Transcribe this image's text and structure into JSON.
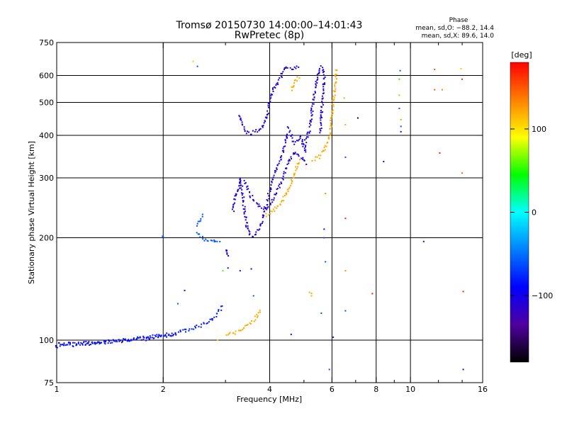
{
  "chart_data": {
    "type": "scatter",
    "title": "Tromsø 20150730 14:00:00–14:01:43",
    "subtitle": "RwPretec (8p)",
    "xlabel": "Frequency [MHz]",
    "ylabel": "Stationary phase Virtual Height [km]",
    "x_scale": "log",
    "y_scale": "log",
    "xlim": [
      1,
      16
    ],
    "ylim": [
      75,
      750
    ],
    "x_ticks": [
      1,
      2,
      4,
      6,
      8,
      10,
      16
    ],
    "x_tick_labels": [
      "1",
      "2",
      "4",
      "6",
      "8",
      "10",
      "16"
    ],
    "x_grid": [
      2,
      4,
      6,
      8,
      10
    ],
    "x_minor_ticks": [
      3,
      5,
      7,
      9,
      12,
      14
    ],
    "y_ticks": [
      75,
      100,
      200,
      300,
      400,
      500,
      600,
      750
    ],
    "y_tick_labels": [
      "75",
      "100",
      "200",
      "300",
      "400",
      "500",
      "600",
      "750"
    ],
    "y_grid": [
      100,
      200,
      300,
      400,
      500,
      600
    ],
    "grid": true,
    "stats": {
      "heading": "Phase",
      "line_o": "mean, sd,O: −88.2, 14.4",
      "line_x": "mean, sd,X:  89.6, 14.0"
    },
    "colorbar": {
      "label": "[deg]",
      "range": [
        -180,
        180
      ],
      "ticks": [
        100,
        0,
        -100
      ],
      "tick_labels": [
        "100",
        "0",
        "−100"
      ],
      "colors": [
        "#ff0000",
        "#ff8000",
        "#ffff00",
        "#00ff00",
        "#00ffff",
        "#0080ff",
        "#0000ff",
        "#5000a0",
        "#000000"
      ]
    },
    "traces": [
      {
        "phase": -105,
        "segments": [
          [
            [
              1.0,
              97
            ],
            [
              1.2,
              98
            ],
            [
              1.4,
              99
            ],
            [
              1.6,
              100
            ],
            [
              1.8,
              101
            ],
            [
              2.0,
              103
            ],
            [
              2.2,
              104
            ]
          ]
        ]
      },
      {
        "phase": -80,
        "segments": [
          [
            [
              1.0,
              96
            ],
            [
              1.3,
              98
            ],
            [
              1.7,
              101
            ],
            [
              2.1,
              104
            ],
            [
              2.4,
              108
            ],
            [
              2.7,
              113
            ],
            [
              2.85,
              120
            ],
            [
              2.95,
              127
            ]
          ]
        ]
      },
      {
        "phase": -60,
        "segments": [
          [
            [
              2.5,
              207
            ],
            [
              2.6,
              199
            ],
            [
              2.72,
              195
            ],
            [
              2.82,
              194
            ],
            [
              2.9,
              196
            ]
          ],
          [
            [
              2.48,
              218
            ],
            [
              2.55,
              228
            ],
            [
              2.6,
              234
            ]
          ],
          [
            [
              2.0,
              200
            ],
            [
              1.97,
              203
            ]
          ]
        ]
      },
      {
        "phase": -108,
        "segments": [
          [
            [
              3.0,
              185
            ],
            [
              3.05,
              178
            ],
            [
              3.1,
              175
            ]
          ],
          [
            [
              3.15,
              240
            ],
            [
              3.2,
              260
            ],
            [
              3.27,
              280
            ],
            [
              3.3,
              300
            ],
            [
              3.35,
              270
            ],
            [
              3.4,
              240
            ],
            [
              3.45,
              215
            ],
            [
              3.5,
              205
            ],
            [
              3.6,
              203
            ],
            [
              3.7,
              210
            ],
            [
              3.8,
              225
            ],
            [
              3.9,
              245
            ],
            [
              4.0,
              275
            ],
            [
              4.1,
              300
            ],
            [
              4.2,
              320
            ],
            [
              4.3,
              340
            ],
            [
              4.4,
              370
            ],
            [
              4.5,
              410
            ]
          ],
          [
            [
              3.4,
              292
            ],
            [
              3.5,
              270
            ],
            [
              3.7,
              250
            ],
            [
              3.9,
              242
            ],
            [
              4.1,
              260
            ],
            [
              4.3,
              290
            ],
            [
              4.5,
              330
            ],
            [
              4.7,
              355
            ],
            [
              4.9,
              345
            ],
            [
              5.1,
              330
            ]
          ],
          [
            [
              3.3,
              460
            ],
            [
              3.4,
              410
            ],
            [
              3.5,
              405
            ],
            [
              3.7,
              412
            ],
            [
              3.85,
              430
            ],
            [
              3.95,
              460
            ],
            [
              4.0,
              510
            ],
            [
              4.1,
              545
            ],
            [
              4.25,
              580
            ],
            [
              4.45,
              635
            ],
            [
              4.65,
              630
            ],
            [
              4.85,
              645
            ]
          ],
          [
            [
              4.5,
              420
            ],
            [
              4.7,
              380
            ],
            [
              4.9,
              400
            ],
            [
              5.0,
              370
            ],
            [
              5.1,
              355
            ]
          ],
          [
            [
              5.0,
              370
            ],
            [
              5.2,
              420
            ],
            [
              5.3,
              500
            ],
            [
              5.4,
              560
            ],
            [
              5.5,
              620
            ],
            [
              5.6,
              640
            ],
            [
              5.7,
              600
            ],
            [
              5.65,
              520
            ],
            [
              5.6,
              450
            ],
            [
              5.55,
              400
            ]
          ]
        ]
      },
      {
        "phase": 120,
        "segments": [
          [
            [
              3.0,
              104
            ],
            [
              3.2,
              105
            ],
            [
              3.4,
              109
            ],
            [
              3.55,
              113
            ],
            [
              3.7,
              118
            ],
            [
              3.8,
              123
            ]
          ],
          [
            [
              3.9,
              232
            ],
            [
              4.1,
              240
            ],
            [
              4.3,
              252
            ],
            [
              4.5,
              275
            ],
            [
              4.7,
              305
            ],
            [
              4.85,
              340
            ]
          ],
          [
            [
              5.3,
              340
            ],
            [
              5.5,
              345
            ],
            [
              5.7,
              360
            ],
            [
              5.9,
              400
            ],
            [
              6.0,
              460
            ],
            [
              6.1,
              540
            ],
            [
              6.2,
              630
            ]
          ],
          [
            [
              4.6,
              545
            ],
            [
              4.7,
              570
            ],
            [
              4.85,
              600
            ]
          ],
          [
            [
              5.2,
              138
            ],
            [
              5.3,
              134
            ]
          ]
        ]
      }
    ],
    "points": [
      {
        "x": 2.43,
        "y": 660,
        "phase": 110
      },
      {
        "x": 2.5,
        "y": 638,
        "phase": -60
      },
      {
        "x": 2.3,
        "y": 140,
        "phase": -110
      },
      {
        "x": 2.2,
        "y": 128,
        "phase": -60
      },
      {
        "x": 2.85,
        "y": 100,
        "phase": 110
      },
      {
        "x": 2.95,
        "y": 160,
        "phase": 60
      },
      {
        "x": 3.05,
        "y": 163,
        "phase": -110
      },
      {
        "x": 3.3,
        "y": 160,
        "phase": -110
      },
      {
        "x": 3.55,
        "y": 162,
        "phase": -110
      },
      {
        "x": 3.6,
        "y": 135,
        "phase": -60
      },
      {
        "x": 4.6,
        "y": 104,
        "phase": -110
      },
      {
        "x": 5.7,
        "y": 212,
        "phase": -110
      },
      {
        "x": 5.7,
        "y": 200,
        "phase": -60
      },
      {
        "x": 5.75,
        "y": 170,
        "phase": -60
      },
      {
        "x": 5.9,
        "y": 82,
        "phase": -60
      },
      {
        "x": 6.05,
        "y": 102,
        "phase": -110
      },
      {
        "x": 5.75,
        "y": 270,
        "phase": 130
      },
      {
        "x": 5.6,
        "y": 120,
        "phase": -60
      },
      {
        "x": 6.5,
        "y": 515,
        "phase": 120
      },
      {
        "x": 6.55,
        "y": 430,
        "phase": 120
      },
      {
        "x": 6.55,
        "y": 345,
        "phase": -60
      },
      {
        "x": 6.55,
        "y": 228,
        "phase": 170
      },
      {
        "x": 6.55,
        "y": 160,
        "phase": 130
      },
      {
        "x": 6.55,
        "y": 122,
        "phase": -60
      },
      {
        "x": 7.1,
        "y": 450,
        "phase": -170
      },
      {
        "x": 7.8,
        "y": 137,
        "phase": 170
      },
      {
        "x": 8.4,
        "y": 335,
        "phase": -110
      },
      {
        "x": 9.35,
        "y": 620,
        "phase": -60
      },
      {
        "x": 9.3,
        "y": 585,
        "phase": 50
      },
      {
        "x": 9.3,
        "y": 525,
        "phase": 120
      },
      {
        "x": 9.3,
        "y": 480,
        "phase": -60
      },
      {
        "x": 9.4,
        "y": 445,
        "phase": 130
      },
      {
        "x": 9.4,
        "y": 425,
        "phase": -60
      },
      {
        "x": 9.4,
        "y": 410,
        "phase": -110
      },
      {
        "x": 10.9,
        "y": 195,
        "phase": -120
      },
      {
        "x": 11.7,
        "y": 625,
        "phase": 150
      },
      {
        "x": 11.7,
        "y": 545,
        "phase": 150
      },
      {
        "x": 12.1,
        "y": 355,
        "phase": 170
      },
      {
        "x": 12.3,
        "y": 545,
        "phase": 130
      },
      {
        "x": 13.9,
        "y": 628,
        "phase": 110
      },
      {
        "x": 14.0,
        "y": 585,
        "phase": 170
      },
      {
        "x": 14.0,
        "y": 310,
        "phase": 150
      },
      {
        "x": 14.1,
        "y": 139,
        "phase": 170
      },
      {
        "x": 14.1,
        "y": 82,
        "phase": -110
      }
    ]
  }
}
